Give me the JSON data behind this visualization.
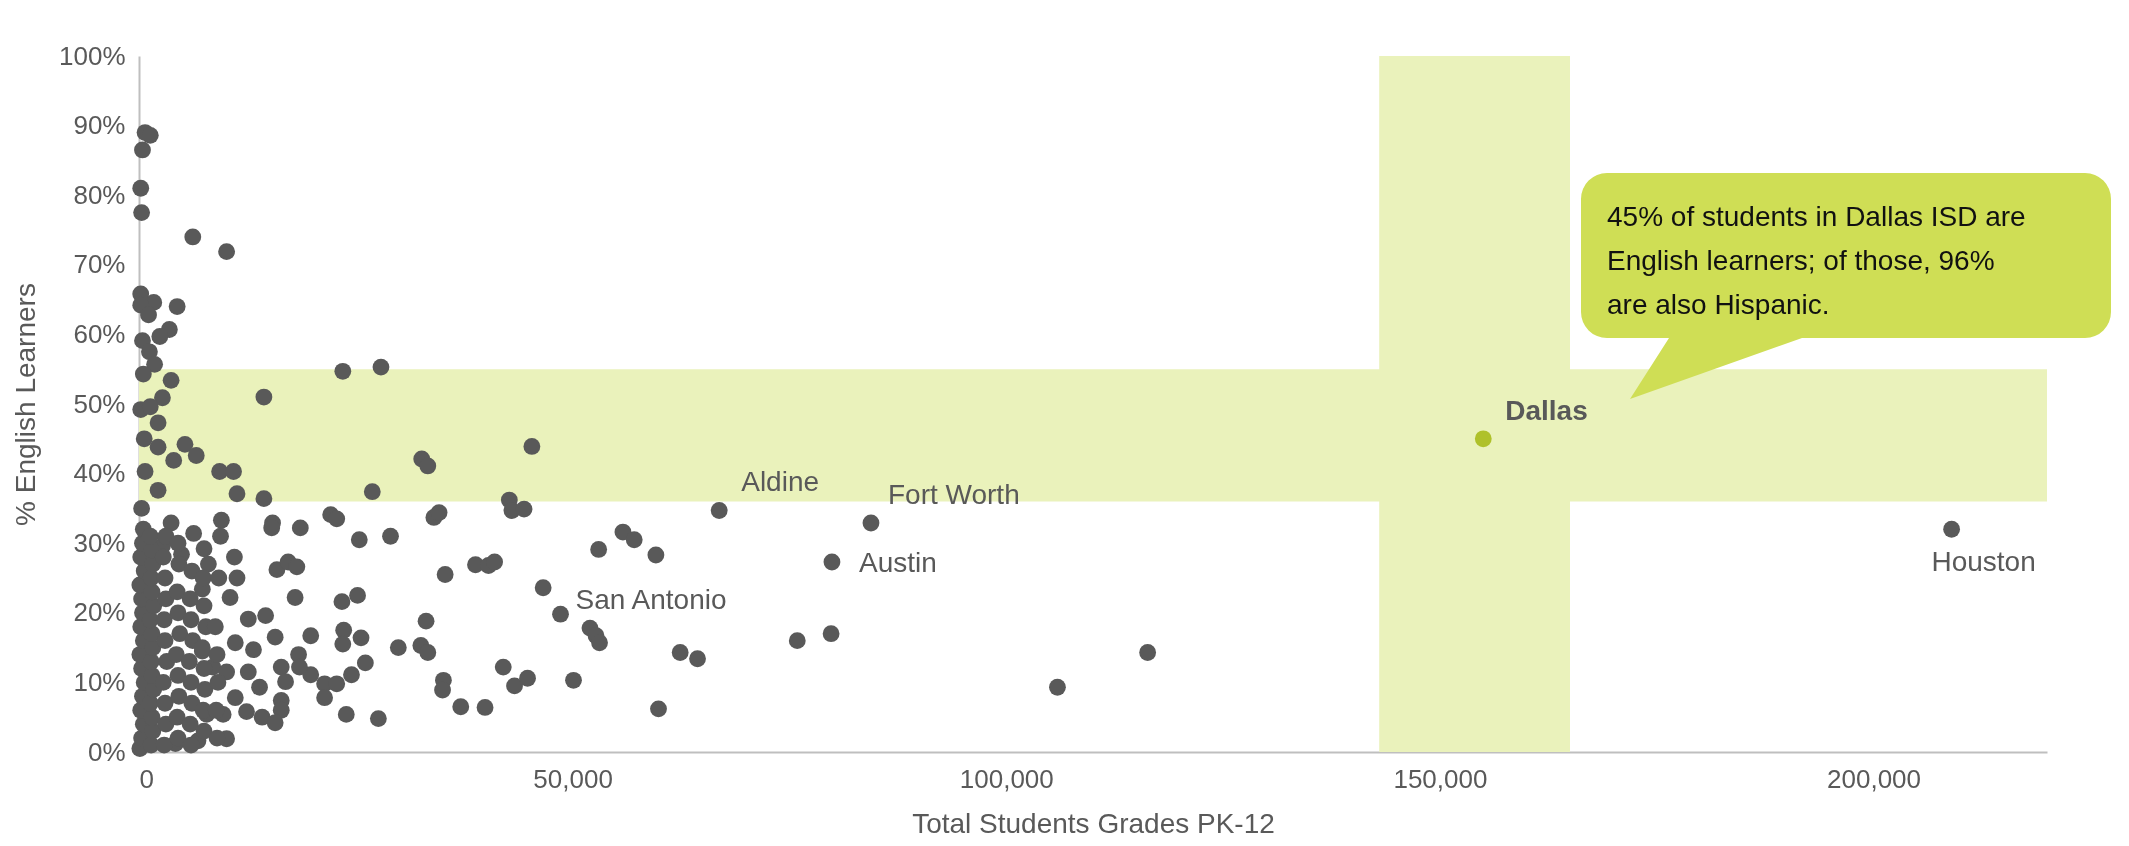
{
  "chart_data": {
    "type": "scatter",
    "xlabel": "Total Students Grades PK-12",
    "ylabel": "% English Learners",
    "marker": "circle",
    "xlim": [
      0,
      220000
    ],
    "xticks": [
      0,
      {
        "value": 50000,
        "label": "50,000"
      },
      {
        "value": 100000,
        "label": "100,000"
      },
      {
        "value": 150000,
        "label": "150,000"
      },
      {
        "value": 200000,
        "label": "200,000"
      }
    ],
    "ylim": [
      0,
      100
    ],
    "yticks": [
      {
        "value": 0,
        "label": "0%"
      },
      {
        "value": 10,
        "label": "10%"
      },
      {
        "value": 20,
        "label": "20%"
      },
      {
        "value": 30,
        "label": "30%"
      },
      {
        "value": 40,
        "label": "40%"
      },
      {
        "value": 50,
        "label": "50%"
      },
      {
        "value": 60,
        "label": "60%"
      },
      {
        "value": 70,
        "label": "70%"
      },
      {
        "value": 80,
        "label": "80%"
      },
      {
        "value": 90,
        "label": "90%"
      },
      {
        "value": 100,
        "label": "100%"
      }
    ],
    "bands": [
      {
        "axis": "x",
        "from": 143000,
        "to": 165000,
        "color": "#eaf2bb"
      },
      {
        "axis": "y",
        "from": 36,
        "to": 55,
        "color": "#eaf2bb"
      }
    ],
    "series": [
      {
        "color": "#595959",
        "x": [
          700,
          1300,
          400,
          200,
          300,
          6200,
          10100,
          200,
          1700,
          200,
          4400,
          1100,
          3500,
          2400,
          400,
          1200,
          1800,
          500,
          3700,
          2700,
          200,
          1300,
          2200,
          600,
          5300,
          6600,
          4000,
          2200,
          700,
          9300,
          10900,
          11300,
          14400,
          2200,
          14400,
          23500,
          27900,
          26900,
          32600,
          33300,
          45300,
          42700,
          43000,
          44400,
          34000,
          34600,
          22100,
          22800,
          9500,
          15400,
          18600,
          15300,
          9400,
          25400,
          29000,
          6300,
          3700,
          2700,
          7500,
          4900,
          11000,
          8000,
          15900,
          17200,
          18200,
          11300,
          35300,
          38800,
          40300,
          41000,
          46600,
          53000,
          55800,
          57100,
          59600,
          18000,
          10500,
          7300,
          25200,
          23400,
          48600,
          52000,
          52700,
          53100,
          33100,
          19800,
          25600,
          23600,
          23500,
          29900,
          32500,
          33300,
          14600,
          12600,
          15700,
          11100,
          13200,
          7300,
          26100,
          24500,
          19800,
          18400,
          18500,
          16400,
          12600,
          8500,
          10100,
          16900,
          13900,
          16400,
          16400,
          14200,
          15700,
          12400,
          21400,
          21400,
          22800,
          23900,
          27600,
          35100,
          35000,
          37100,
          39900,
          42000,
          43300,
          44800,
          50100,
          59900,
          62400,
          64400,
          10100,
          6800,
          4200,
          11100,
          7800,
          9700,
          66900,
          84400,
          79900,
          75900,
          79800,
          105900,
          116300,
          209000,
          100,
          300,
          500,
          200,
          400,
          600,
          300,
          100,
          500,
          200,
          400,
          300,
          100,
          600,
          200,
          400,
          500,
          300,
          1400,
          1600,
          1500,
          1300,
          1700,
          1500,
          1400,
          1600,
          1500,
          1300,
          1700,
          1500,
          1400,
          1600,
          1500,
          1300,
          2900,
          3100,
          3000,
          2800,
          3200,
          3000,
          2900,
          3100,
          3000,
          2800,
          3100,
          4500,
          4400,
          4600,
          4500,
          4300,
          4700,
          4500,
          4400,
          4600,
          4500,
          6000,
          5900,
          6100,
          6000,
          5800,
          6200,
          6000,
          5900,
          6100,
          7500,
          7400,
          7600,
          7500,
          7300,
          7700,
          7500,
          7400,
          9000,
          8900,
          9100,
          9000,
          8800,
          9200
        ],
        "values": [
          89.0,
          88.6,
          86.5,
          81.0,
          77.5,
          74.0,
          71.9,
          65.8,
          64.6,
          64.2,
          64.0,
          62.8,
          60.7,
          59.7,
          59.1,
          57.5,
          55.7,
          54.3,
          53.4,
          50.9,
          49.2,
          49.6,
          47.3,
          45.0,
          44.2,
          42.6,
          41.9,
          43.8,
          40.3,
          40.3,
          40.3,
          37.1,
          36.4,
          37.6,
          51.0,
          54.7,
          55.3,
          37.4,
          42.1,
          41.1,
          43.9,
          36.2,
          34.7,
          34.9,
          33.7,
          34.4,
          34.1,
          33.5,
          33.3,
          32.9,
          32.2,
          32.2,
          31.0,
          30.5,
          31.0,
          31.4,
          32.9,
          29.6,
          29.2,
          28.4,
          28.0,
          27.0,
          26.2,
          27.3,
          26.6,
          25.0,
          25.5,
          26.9,
          26.8,
          27.3,
          23.6,
          29.1,
          31.6,
          30.5,
          28.3,
          22.2,
          22.2,
          23.4,
          22.5,
          21.6,
          19.8,
          17.8,
          16.7,
          15.7,
          18.8,
          16.7,
          16.4,
          17.5,
          15.5,
          15.0,
          15.3,
          14.3,
          19.6,
          19.1,
          16.5,
          15.7,
          14.7,
          14.5,
          12.8,
          11.1,
          11.1,
          14.0,
          12.2,
          12.2,
          11.5,
          12.2,
          11.5,
          10.1,
          9.3,
          7.4,
          6.0,
          5.0,
          4.2,
          5.8,
          9.8,
          7.8,
          9.8,
          5.4,
          4.8,
          10.3,
          8.9,
          6.5,
          6.4,
          12.2,
          9.5,
          10.6,
          10.3,
          6.2,
          14.3,
          13.4,
          1.9,
          1.6,
          1.2,
          7.8,
          5.4,
          5.4,
          34.7,
          32.9,
          27.3,
          16.0,
          17.0,
          9.3,
          14.3,
          32.0,
          0.5,
          2,
          4,
          6,
          8,
          10,
          12,
          14,
          16,
          18,
          20,
          22,
          24,
          26,
          28,
          30,
          32,
          35,
          1,
          3,
          5,
          7,
          9,
          11,
          13,
          15,
          17,
          19,
          21,
          23,
          25,
          27,
          29,
          31,
          1,
          4,
          7,
          10,
          13,
          16,
          19,
          22,
          25,
          28,
          31,
          2,
          5,
          8,
          11,
          14,
          17,
          20,
          23,
          27,
          30,
          1,
          4,
          7,
          10,
          13,
          16,
          19,
          22,
          26,
          3,
          6,
          9,
          12,
          15,
          18,
          21,
          25,
          2,
          6,
          10,
          14,
          18,
          25
        ]
      },
      {
        "color": "#afc12a",
        "x": [
          155000
        ],
        "values": [
          45
        ]
      }
    ],
    "annotations": [
      {
        "text": "Aldine",
        "x": 66900,
        "y": 34.7
      },
      {
        "text": "Fort Worth",
        "x": 84400,
        "y": 32.9
      },
      {
        "text": "Austin",
        "x": 79900,
        "y": 27.3
      },
      {
        "text": "San Antonio",
        "x": 48600,
        "y": 19.8
      },
      {
        "text": "Dallas",
        "x": 155000,
        "y": 45
      },
      {
        "text": "Houston",
        "x": 209000,
        "y": 32.0
      },
      "45% of students in Dallas ISD are English learners; of those, 96% are also Hispanic."
    ]
  }
}
